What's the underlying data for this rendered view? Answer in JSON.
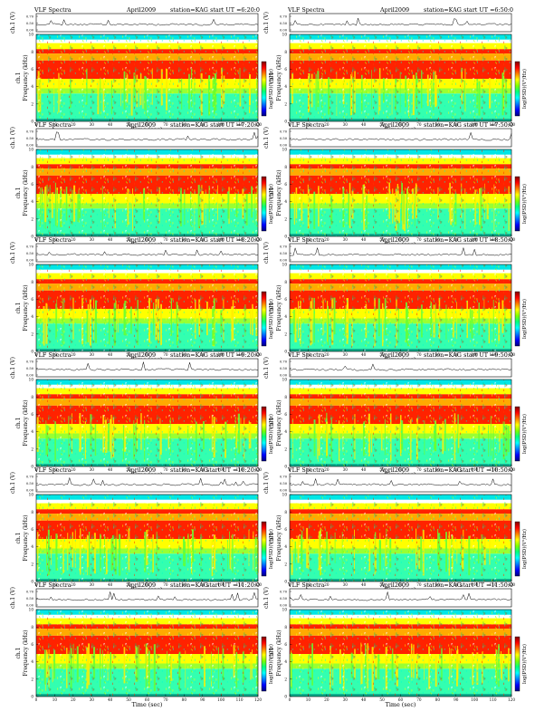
{
  "page": {
    "panel_header": {
      "left": "VLF Spectra",
      "date": "April2009",
      "station": "station=KAG",
      "start_prefix": "start UT ="
    },
    "labels": {
      "ch1_y": "ch.1 (V)",
      "freq_y": "Frequency (kHz)",
      "ch1_side": "ch.1",
      "time_x": "Time (sec)",
      "colorbar": "log(PSD)(V²/Hz)"
    },
    "colorbar_colors": [
      "#00007f",
      "#0000ff",
      "#007fff",
      "#00ffff",
      "#00ff7f",
      "#7fff00",
      "#ffff00",
      "#ff7f00",
      "#ff0000",
      "#7f0000"
    ]
  },
  "chart_data": [
    {
      "type": "heatmap",
      "start_ut": "6:20:0",
      "x_range": [
        0,
        120
      ],
      "x_ticks": [
        0,
        10,
        20,
        30,
        40,
        50,
        60,
        70,
        80,
        90,
        100,
        110,
        120
      ],
      "y_range_khz": [
        0,
        10
      ],
      "y_ticks": [
        0,
        2,
        4,
        6,
        8,
        10
      ],
      "amp_ticks": [
        "0.00",
        "0.50",
        "0.70"
      ],
      "xlabel": "Time (sec)",
      "ylabel": "Frequency (kHz)"
    },
    {
      "type": "heatmap",
      "start_ut": "6:50:0",
      "x_range": [
        0,
        120
      ],
      "x_ticks": [
        0,
        10,
        20,
        30,
        40,
        50,
        60,
        70,
        80,
        90,
        100,
        110,
        120
      ],
      "y_range_khz": [
        0,
        10
      ],
      "y_ticks": [
        0,
        2,
        4,
        6,
        8,
        10
      ],
      "amp_ticks": [
        "0.00",
        "0.50",
        "0.70"
      ],
      "xlabel": "Time (sec)",
      "ylabel": "Frequency (kHz)"
    },
    {
      "type": "heatmap",
      "start_ut": "7:20:0",
      "x_range": [
        0,
        120
      ],
      "x_ticks": [
        0,
        10,
        20,
        30,
        40,
        50,
        60,
        70,
        80,
        90,
        100,
        110,
        120
      ],
      "y_range_khz": [
        0,
        10
      ],
      "y_ticks": [
        0,
        2,
        4,
        6,
        8,
        10
      ],
      "amp_ticks": [
        "0.00",
        "0.50",
        "0.70"
      ],
      "xlabel": "Time (sec)",
      "ylabel": "Frequency (kHz)"
    },
    {
      "type": "heatmap",
      "start_ut": "7:50:0",
      "x_range": [
        0,
        120
      ],
      "x_ticks": [
        0,
        10,
        20,
        30,
        40,
        50,
        60,
        70,
        80,
        90,
        100,
        110,
        120
      ],
      "y_range_khz": [
        0,
        10
      ],
      "y_ticks": [
        0,
        2,
        4,
        6,
        8,
        10
      ],
      "amp_ticks": [
        "0.00",
        "0.50",
        "0.70"
      ],
      "xlabel": "Time (sec)",
      "ylabel": "Frequency (kHz)"
    },
    {
      "type": "heatmap",
      "start_ut": "8:20:0",
      "x_range": [
        0,
        120
      ],
      "x_ticks": [
        0,
        10,
        20,
        30,
        40,
        50,
        60,
        70,
        80,
        90,
        100,
        110,
        120
      ],
      "y_range_khz": [
        0,
        10
      ],
      "y_ticks": [
        0,
        2,
        4,
        6,
        8,
        10
      ],
      "amp_ticks": [
        "0.00",
        "0.50",
        "0.70"
      ],
      "xlabel": "Time (sec)",
      "ylabel": "Frequency (kHz)"
    },
    {
      "type": "heatmap",
      "start_ut": "8:50:0",
      "x_range": [
        0,
        120
      ],
      "x_ticks": [
        0,
        10,
        20,
        30,
        40,
        50,
        60,
        70,
        80,
        90,
        100,
        110,
        120
      ],
      "y_range_khz": [
        0,
        10
      ],
      "y_ticks": [
        0,
        2,
        4,
        6,
        8,
        10
      ],
      "amp_ticks": [
        "0.00",
        "0.50",
        "0.70"
      ],
      "xlabel": "Time (sec)",
      "ylabel": "Frequency (kHz)"
    },
    {
      "type": "heatmap",
      "start_ut": "9:20:0",
      "x_range": [
        0,
        120
      ],
      "x_ticks": [
        0,
        10,
        20,
        30,
        40,
        50,
        60,
        70,
        80,
        90,
        100,
        110,
        120
      ],
      "y_range_khz": [
        0,
        10
      ],
      "y_ticks": [
        0,
        2,
        4,
        6,
        8,
        10
      ],
      "amp_ticks": [
        "0.00",
        "0.50",
        "0.70"
      ],
      "xlabel": "Time (sec)",
      "ylabel": "Frequency (kHz)"
    },
    {
      "type": "heatmap",
      "start_ut": "9:50:0",
      "x_range": [
        0,
        120
      ],
      "x_ticks": [
        0,
        10,
        20,
        30,
        40,
        50,
        60,
        70,
        80,
        90,
        100,
        110,
        120
      ],
      "y_range_khz": [
        0,
        10
      ],
      "y_ticks": [
        0,
        2,
        4,
        6,
        8,
        10
      ],
      "amp_ticks": [
        "0.00",
        "0.50",
        "0.70"
      ],
      "xlabel": "Time (sec)",
      "ylabel": "Frequency (kHz)"
    },
    {
      "type": "heatmap",
      "start_ut": "10:20:0",
      "x_range": [
        0,
        120
      ],
      "x_ticks": [
        0,
        10,
        20,
        30,
        40,
        50,
        60,
        70,
        80,
        90,
        100,
        110,
        120
      ],
      "y_range_khz": [
        0,
        10
      ],
      "y_ticks": [
        0,
        2,
        4,
        6,
        8,
        10
      ],
      "amp_ticks": [
        "0.00",
        "0.50",
        "0.70"
      ],
      "xlabel": "Time (sec)",
      "ylabel": "Frequency (kHz)"
    },
    {
      "type": "heatmap",
      "start_ut": "10:50:0",
      "x_range": [
        0,
        120
      ],
      "x_ticks": [
        0,
        10,
        20,
        30,
        40,
        50,
        60,
        70,
        80,
        90,
        100,
        110,
        120
      ],
      "y_range_khz": [
        0,
        10
      ],
      "y_ticks": [
        0,
        2,
        4,
        6,
        8,
        10
      ],
      "amp_ticks": [
        "0.00",
        "0.50",
        "0.70"
      ],
      "xlabel": "Time (sec)",
      "ylabel": "Frequency (kHz)"
    },
    {
      "type": "heatmap",
      "start_ut": "11:20:0",
      "x_range": [
        0,
        120
      ],
      "x_ticks": [
        0,
        10,
        20,
        30,
        40,
        50,
        60,
        70,
        80,
        90,
        100,
        110,
        120
      ],
      "y_range_khz": [
        0,
        10
      ],
      "y_ticks": [
        0,
        2,
        4,
        6,
        8,
        10
      ],
      "amp_ticks": [
        "0.00",
        "0.50",
        "0.70"
      ],
      "xlabel": "Time (sec)",
      "ylabel": "Frequency (kHz)"
    },
    {
      "type": "heatmap",
      "start_ut": "11:50:0",
      "x_range": [
        0,
        120
      ],
      "x_ticks": [
        0,
        10,
        20,
        30,
        40,
        50,
        60,
        70,
        80,
        90,
        100,
        110,
        120
      ],
      "y_range_khz": [
        0,
        10
      ],
      "y_ticks": [
        0,
        2,
        4,
        6,
        8,
        10
      ],
      "amp_ticks": [
        "0.00",
        "0.50",
        "0.70"
      ],
      "xlabel": "Time (sec)",
      "ylabel": "Frequency (kHz)"
    }
  ]
}
